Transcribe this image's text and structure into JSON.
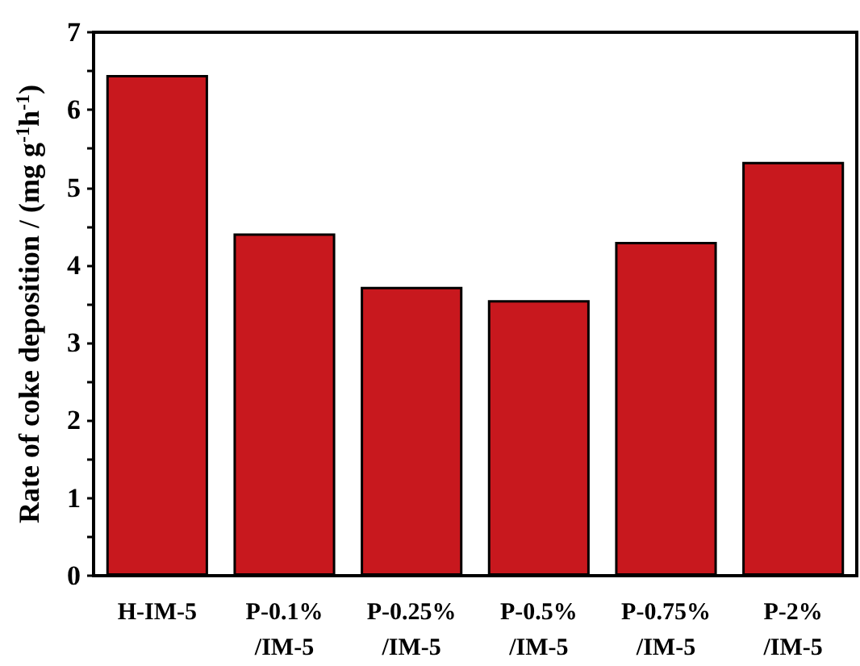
{
  "chart_data": {
    "type": "bar",
    "ylabel": "Rate of coke deposition / (mg g$^{-1}$h$^{-1}$)",
    "categories": [
      "H-IM-5",
      "P-0.1%\n/IM-5",
      "P-0.25%\n/IM-5",
      "P-0.5%\n/IM-5",
      "P-0.75%\n/IM-5",
      "P-2%\n/IM-5"
    ],
    "values": [
      6.45,
      4.41,
      3.72,
      3.55,
      4.3,
      5.33
    ],
    "color": "#c8181e",
    "ylim": [
      0,
      7
    ],
    "yticks": [
      0,
      {
        "value": 0.5,
        "label": null
      },
      1,
      {
        "value": 1.5,
        "label": null
      },
      2,
      {
        "value": 2.5,
        "label": null
      },
      3,
      {
        "value": 3.5,
        "label": null
      },
      4,
      {
        "value": 4.5,
        "label": null
      },
      5,
      {
        "value": 5.5,
        "label": null
      },
      6,
      {
        "value": 6.5,
        "label": null
      },
      7
    ],
    "grid": false
  }
}
